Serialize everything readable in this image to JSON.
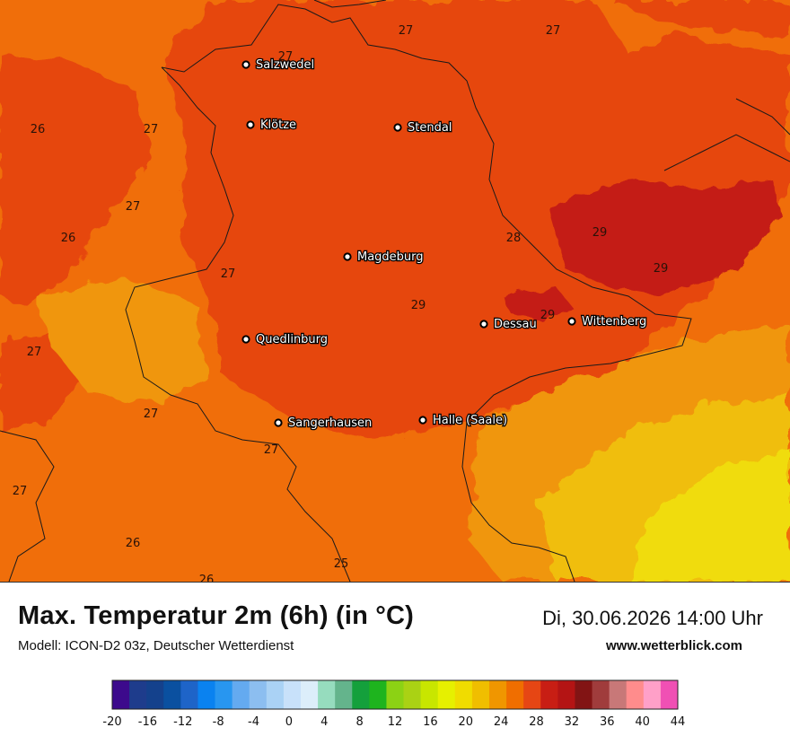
{
  "map": {
    "cities": [
      {
        "name": "Salzwedel"
      },
      {
        "name": "Klötze"
      },
      {
        "name": "Stendal"
      },
      {
        "name": "Magdeburg"
      },
      {
        "name": "Dessau"
      },
      {
        "name": "Wittenberg"
      },
      {
        "name": "Quedlinburg"
      },
      {
        "name": "Sangerhausen"
      },
      {
        "name": "Halle (Saale)"
      }
    ],
    "value_labels": [
      "27",
      "27",
      "27",
      "26",
      "27",
      "27",
      "26",
      "27",
      "28",
      "29",
      "29",
      "29",
      "29",
      "27",
      "27",
      "27",
      "27",
      "26",
      "26",
      "25"
    ]
  },
  "header": {
    "title": "Max. Temperatur 2m (6h) (in °C)",
    "model": "Modell: ICON-D2 03z, Deutscher Wetterdienst",
    "datetime": "Di, 30.06.2026 14:00 Uhr",
    "website": "www.wetterblick.com"
  },
  "legend": {
    "ticks": [
      "-20",
      "-16",
      "-12",
      "-8",
      "-4",
      "0",
      "4",
      "8",
      "12",
      "16",
      "20",
      "24",
      "28",
      "32",
      "36",
      "40",
      "44"
    ],
    "colors": [
      "#3c0a8c",
      "#1e3c8c",
      "#14418c",
      "#0a50a0",
      "#1e64c8",
      "#0a82f0",
      "#2896f0",
      "#64aaf0",
      "#8cbef0",
      "#aad2f5",
      "#c8e1fa",
      "#dceefa",
      "#96dcbe",
      "#64b48c",
      "#14a03c",
      "#1eb41e",
      "#8cd214",
      "#aad214",
      "#c8e600",
      "#e6f000",
      "#f0dc00",
      "#f0be00",
      "#f09600",
      "#f06e00",
      "#e64614",
      "#c81e14",
      "#b41414",
      "#821414",
      "#a03c3c",
      "#c87878",
      "#ff8c8c",
      "#ffa0c8",
      "#f050b4"
    ]
  }
}
